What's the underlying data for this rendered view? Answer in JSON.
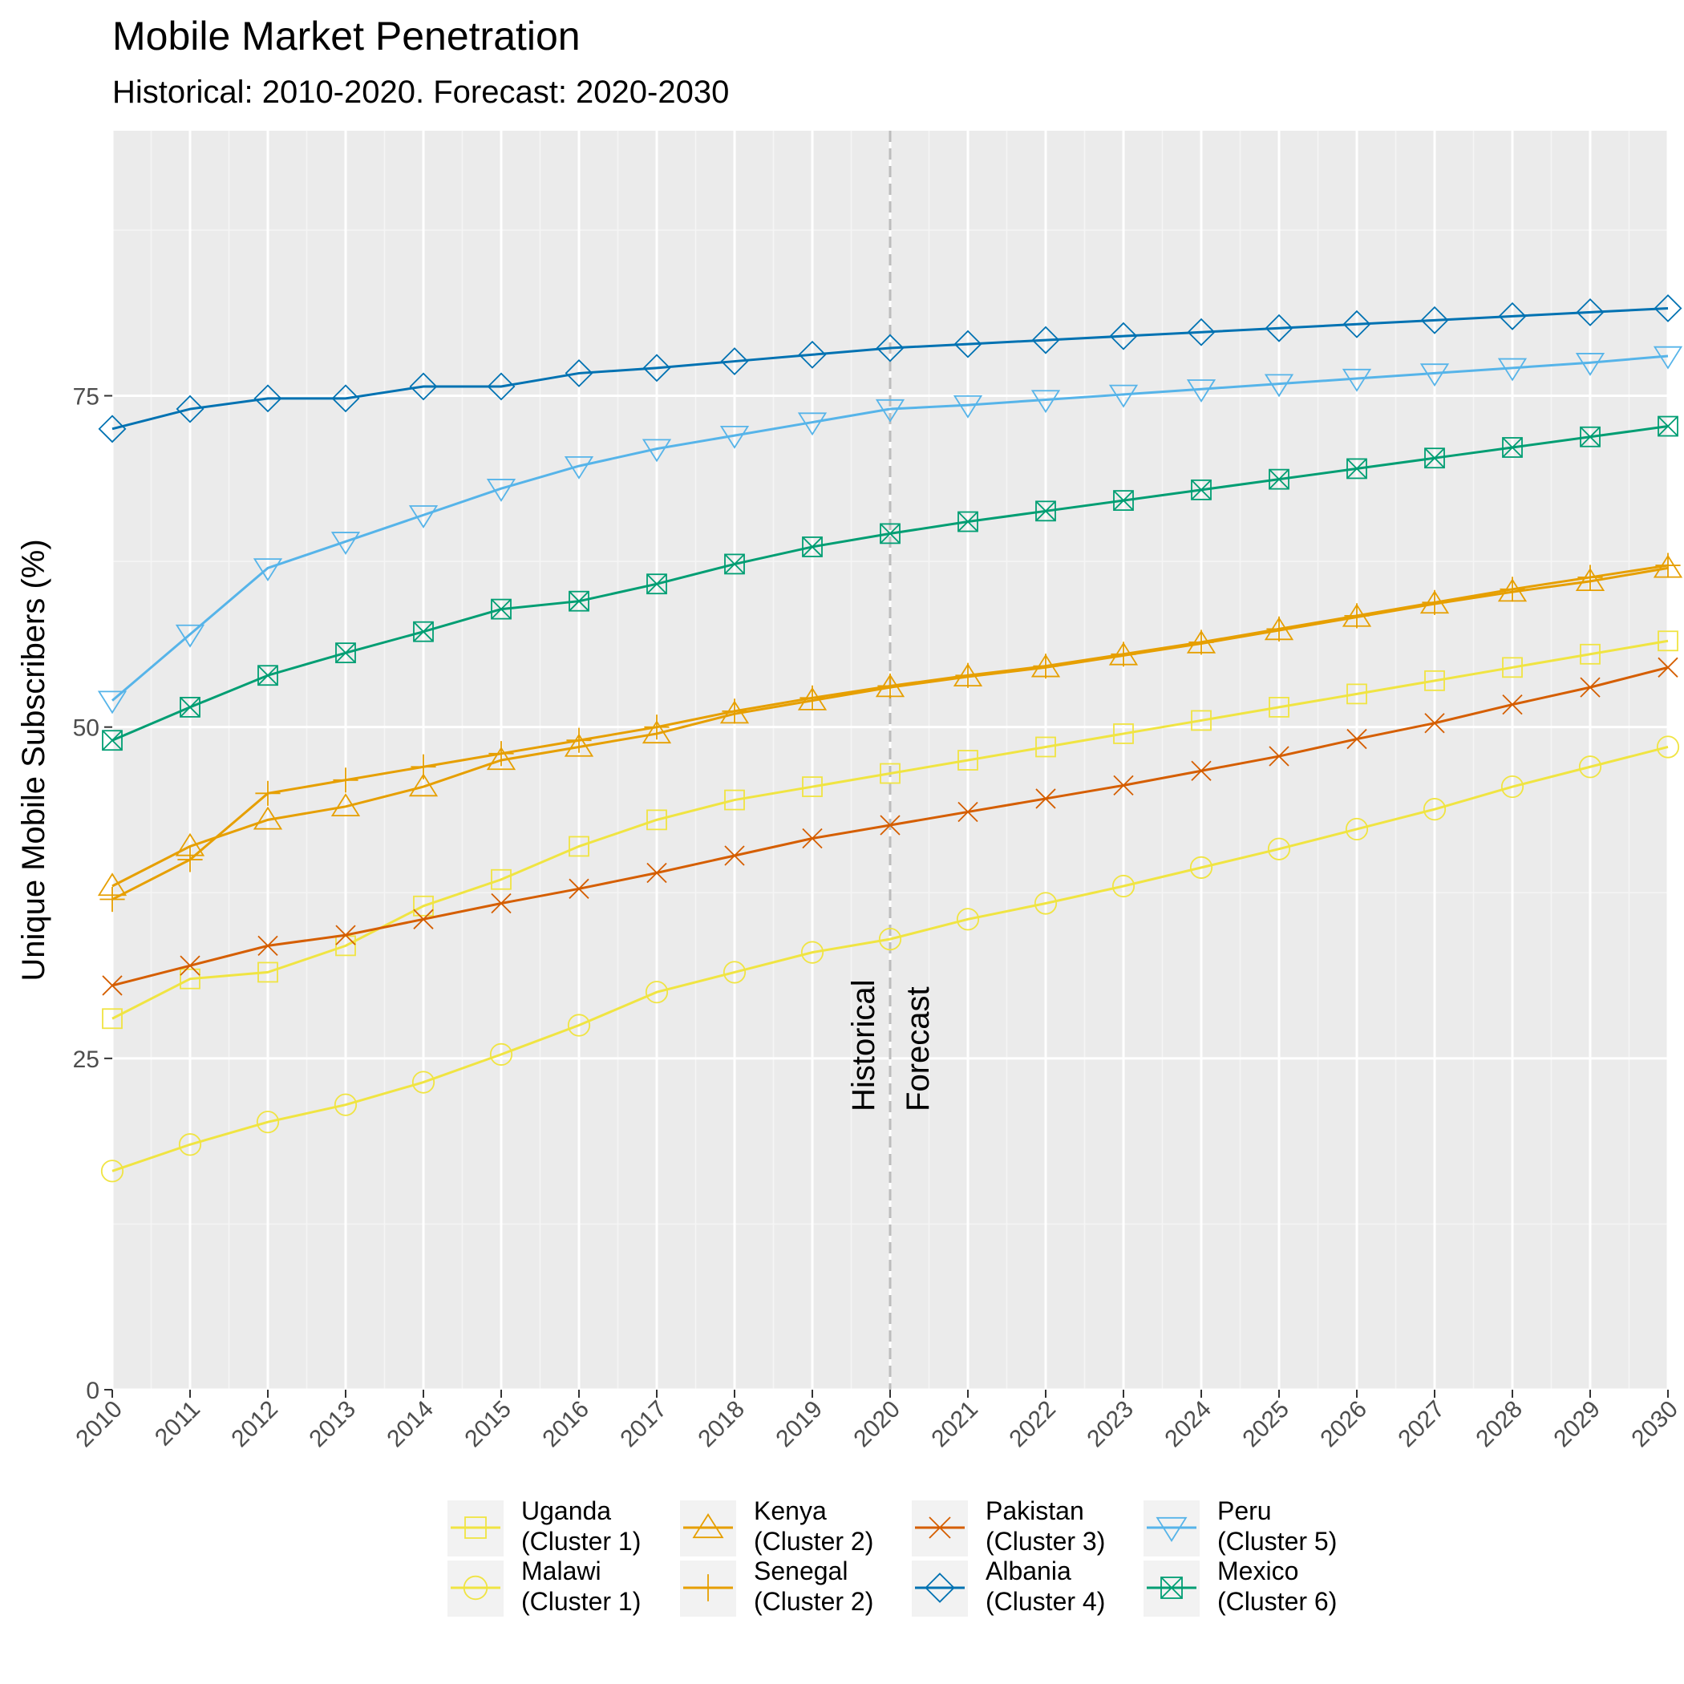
{
  "chart_data": {
    "type": "line",
    "title": "Mobile Market Penetration",
    "subtitle": "Historical: 2010-2020. Forecast: 2020-2030",
    "ylabel": "Unique Mobile Subscribers (%)",
    "xlabel": "",
    "xlim": [
      2010,
      2030
    ],
    "ylim": [
      0,
      95
    ],
    "x": [
      2010,
      2011,
      2012,
      2013,
      2014,
      2015,
      2016,
      2017,
      2018,
      2019,
      2020,
      2021,
      2022,
      2023,
      2024,
      2025,
      2026,
      2027,
      2028,
      2029,
      2030
    ],
    "x_ticks": [
      "2010",
      "2011",
      "2012",
      "2013",
      "2014",
      "2015",
      "2016",
      "2017",
      "2018",
      "2019",
      "2020",
      "2021",
      "2022",
      "2023",
      "2024",
      "2025",
      "2026",
      "2027",
      "2028",
      "2029",
      "2030"
    ],
    "y_ticks": [
      "0",
      "25",
      "50",
      "75"
    ],
    "grid": true,
    "legend_position": "bottom",
    "vline": {
      "x": 2020,
      "style": "dashed",
      "color": "#bdbdbd"
    },
    "annotations": [
      {
        "text": "Historical",
        "x": 2020,
        "side": "left",
        "y": 21
      },
      {
        "text": "Forecast",
        "x": 2020,
        "side": "right",
        "y": 21
      }
    ],
    "series": [
      {
        "name": "Uganda",
        "sublabel": "(Cluster 1)",
        "color": "#f0e442",
        "marker": "square",
        "values": [
          28,
          31,
          31.5,
          33.5,
          36.5,
          38.5,
          41,
          43,
          44.5,
          45.5,
          46.5,
          47.5,
          48.5,
          49.5,
          50.5,
          51.5,
          52.5,
          53.5,
          54.5,
          55.5,
          56.5
        ]
      },
      {
        "name": "Malawi",
        "sublabel": "(Cluster 1)",
        "color": "#f0e442",
        "marker": "circle",
        "values": [
          16.5,
          18.5,
          20.2,
          21.5,
          23.2,
          25.3,
          27.5,
          30,
          31.5,
          33,
          34,
          35.5,
          36.7,
          38,
          39.4,
          40.8,
          42.3,
          43.8,
          45.5,
          47,
          48.5
        ]
      },
      {
        "name": "Kenya",
        "sublabel": "(Cluster 2)",
        "color": "#e69f00",
        "marker": "triangle-up",
        "values": [
          38,
          41,
          43,
          44,
          45.5,
          47.5,
          48.5,
          49.5,
          51,
          52,
          53,
          53.8,
          54.5,
          55.4,
          56.3,
          57.3,
          58.3,
          59.3,
          60.2,
          61,
          62
        ]
      },
      {
        "name": "Senegal",
        "sublabel": "(Cluster 2)",
        "color": "#e69f00",
        "marker": "plus",
        "values": [
          37,
          40,
          45,
          46,
          47,
          48,
          49,
          50,
          51.2,
          52.2,
          53.1,
          53.9,
          54.6,
          55.5,
          56.4,
          57.4,
          58.4,
          59.4,
          60.4,
          61.3,
          62.2
        ]
      },
      {
        "name": "Pakistan",
        "sublabel": "(Cluster 3)",
        "color": "#d55e00",
        "marker": "x",
        "values": [
          30.5,
          32,
          33.5,
          34.3,
          35.5,
          36.7,
          37.8,
          39,
          40.3,
          41.6,
          42.6,
          43.6,
          44.6,
          45.6,
          46.7,
          47.8,
          49.1,
          50.3,
          51.7,
          53,
          54.5
        ]
      },
      {
        "name": "Albania",
        "sublabel": "(Cluster 4)",
        "color": "#0072b2",
        "marker": "diamond",
        "values": [
          72.5,
          74,
          74.8,
          74.8,
          75.7,
          75.7,
          76.7,
          77.1,
          77.6,
          78.1,
          78.6,
          78.9,
          79.2,
          79.5,
          79.8,
          80.1,
          80.4,
          80.7,
          81,
          81.3,
          81.6
        ]
      },
      {
        "name": "Peru",
        "sublabel": "(Cluster 5)",
        "color": "#56b4e9",
        "marker": "triangle-down",
        "values": [
          52,
          57,
          62,
          64,
          66,
          68,
          69.7,
          71,
          72,
          73,
          74,
          74.3,
          74.7,
          75.1,
          75.5,
          75.9,
          76.3,
          76.7,
          77.1,
          77.5,
          78
        ]
      },
      {
        "name": "Mexico",
        "sublabel": "(Cluster 6)",
        "color": "#009e73",
        "marker": "square-x",
        "values": [
          49,
          51.5,
          53.9,
          55.6,
          57.2,
          58.9,
          59.5,
          60.8,
          62.3,
          63.6,
          64.6,
          65.5,
          66.3,
          67.1,
          67.9,
          68.7,
          69.5,
          70.3,
          71.1,
          71.9,
          72.7
        ]
      }
    ]
  }
}
